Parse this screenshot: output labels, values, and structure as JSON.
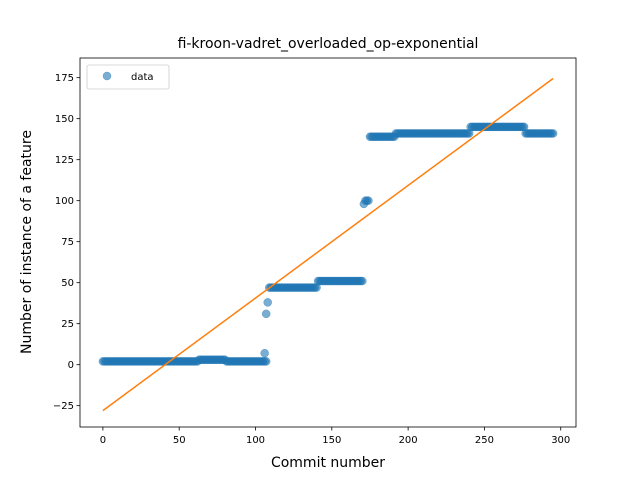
{
  "chart_data": {
    "type": "scatter",
    "title": "fi-kroon-vadret_overloaded_op-exponential",
    "xlabel": "Commit number",
    "ylabel": "Number of instance of a feature",
    "xlim": [
      -15,
      310
    ],
    "ylim": [
      -38,
      187
    ],
    "xticks": [
      0,
      50,
      100,
      150,
      200,
      250,
      300
    ],
    "yticks": [
      -25,
      0,
      25,
      50,
      75,
      100,
      125,
      150,
      175
    ],
    "grid": false,
    "legend": {
      "entries": [
        "data"
      ],
      "placement": "top-left"
    },
    "colors": {
      "data": "#1f77b4",
      "fit": "#ff7f0e"
    },
    "series": [
      {
        "name": "data",
        "kind": "markers",
        "segments": [
          {
            "x_start": 0,
            "x_end": 62,
            "y": 2
          },
          {
            "x_start": 63,
            "x_end": 80,
            "y": 3
          },
          {
            "x_start": 81,
            "x_end": 107,
            "y": 2
          }
        ],
        "points": [
          [
            106,
            7
          ],
          [
            107,
            31
          ],
          [
            108,
            38
          ]
        ],
        "segments2": [
          {
            "x_start": 109,
            "x_end": 140,
            "y": 47
          },
          {
            "x_start": 141,
            "x_end": 170,
            "y": 51
          }
        ],
        "points2": [
          [
            171,
            98
          ],
          [
            172,
            100
          ],
          [
            173,
            100
          ],
          [
            174,
            100
          ]
        ],
        "segments3": [
          {
            "x_start": 175,
            "x_end": 191,
            "y": 139
          },
          {
            "x_start": 192,
            "x_end": 240,
            "y": 141
          },
          {
            "x_start": 241,
            "x_end": 276,
            "y": 145
          },
          {
            "x_start": 277,
            "x_end": 295,
            "y": 141
          }
        ]
      },
      {
        "kind": "line",
        "x": [
          0,
          295
        ],
        "y": [
          -28,
          174.5
        ]
      }
    ]
  }
}
